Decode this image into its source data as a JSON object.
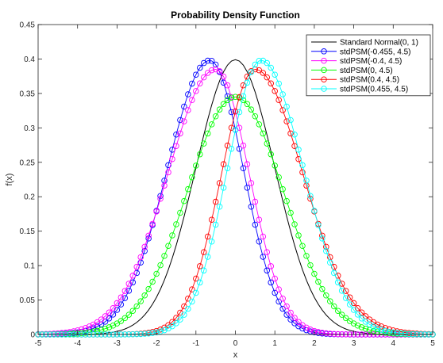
{
  "chart_data": {
    "type": "line",
    "title": "Probability Density Function",
    "xlabel": "x",
    "ylabel": "f(x)",
    "xlim": [
      -5,
      5
    ],
    "ylim": [
      0,
      0.45
    ],
    "xticks": [
      -5,
      -4,
      -3,
      -2,
      -1,
      0,
      1,
      2,
      3,
      4,
      5
    ],
    "yticks": [
      0,
      0.05,
      0.1,
      0.15,
      0.2,
      0.25,
      0.3,
      0.35,
      0.4,
      0.45
    ],
    "grid": false,
    "legend_position": "top-right",
    "sample_step": 0.1,
    "series": [
      {
        "name": "Standard Normal(0, 1)",
        "color": "#000000",
        "marker": "none",
        "peak_x": 0.0,
        "peak_y": 0.399,
        "sd_left": 1.0,
        "sd_right": 1.0
      },
      {
        "name": "stdPSM(-0.455, 4.5)",
        "color": "#0000ff",
        "marker": "circle",
        "peak_x": -0.65,
        "peak_y": 0.398,
        "sd_left": 1.07,
        "sd_right": 0.85
      },
      {
        "name": "stdPSM(-0.4, 4.5)",
        "color": "#ff00ff",
        "marker": "circle",
        "peak_x": -0.5,
        "peak_y": 0.385,
        "sd_left": 1.21,
        "sd_right": 0.85
      },
      {
        "name": "stdPSM(0, 4.5)",
        "color": "#00ff00",
        "marker": "circle",
        "peak_x": 0.0,
        "peak_y": 0.345,
        "sd_left": 1.21,
        "sd_right": 1.21
      },
      {
        "name": "stdPSM(0.4, 4.5)",
        "color": "#ff0000",
        "marker": "circle",
        "peak_x": 0.5,
        "peak_y": 0.385,
        "sd_left": 0.85,
        "sd_right": 1.21
      },
      {
        "name": "stdPSM(0.455, 4.5)",
        "color": "#00ffff",
        "marker": "circle",
        "peak_x": 0.65,
        "peak_y": 0.398,
        "sd_left": 0.85,
        "sd_right": 1.07
      }
    ]
  }
}
